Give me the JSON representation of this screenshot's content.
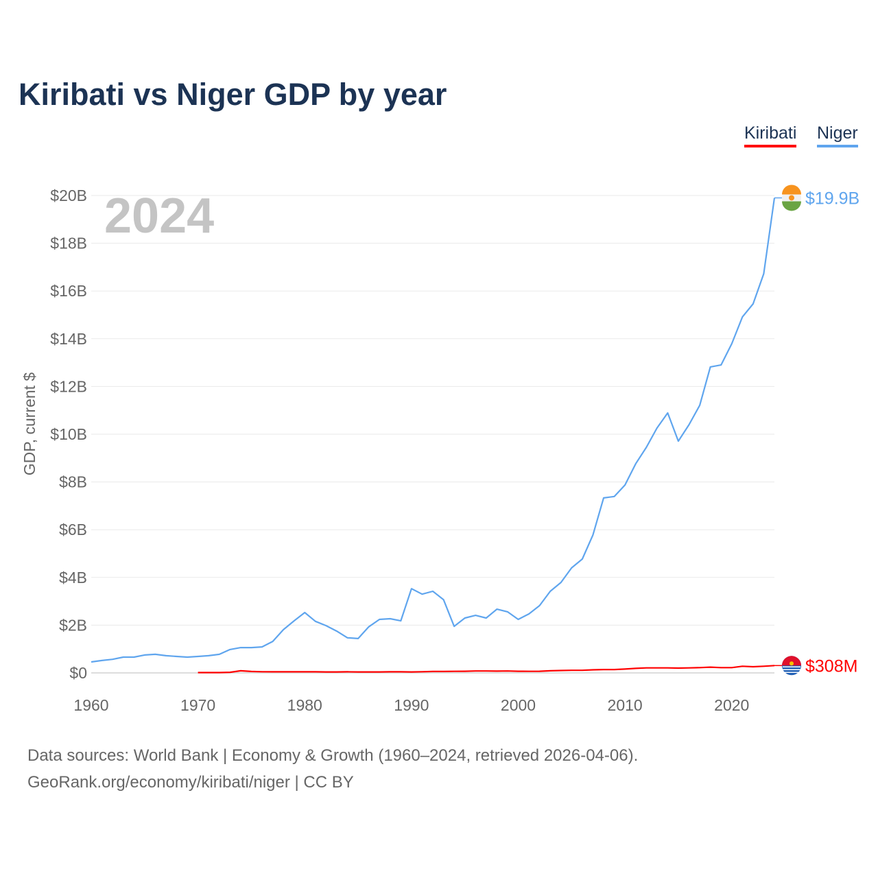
{
  "title": "Kiribati vs Niger GDP by year",
  "legend": [
    {
      "name": "Kiribati",
      "color": "#ff0000"
    },
    {
      "name": "Niger",
      "color": "#5fa5ee"
    }
  ],
  "footer": {
    "line1": "Data sources: World Bank | Economy & Growth (1960–2024, retrieved 2026-04-06).",
    "line2": "GeoRank.org/economy/kiribati/niger | CC BY"
  },
  "chart_data": {
    "type": "line",
    "title": "Kiribati vs Niger GDP by year",
    "ylabel": "GDP, current $",
    "xlabel": "",
    "year_watermark": "2024",
    "xlim": [
      1960,
      2024
    ],
    "ylim": [
      0,
      20
    ],
    "x_ticks": [
      "1960",
      "1970",
      "1980",
      "1990",
      "2000",
      "2010",
      "2020"
    ],
    "y_ticks": [
      "$0",
      "$2B",
      "$4B",
      "$6B",
      "$8B",
      "$10B",
      "$12B",
      "$14B",
      "$16B",
      "$18B",
      "$20B"
    ],
    "grid": true,
    "legend_position": "top-right",
    "series": [
      {
        "name": "Niger",
        "color": "#5fa5ee",
        "start_year": 1960,
        "end_label": "$19.9B",
        "flag": "niger-flag",
        "values": [
          0.46,
          0.52,
          0.57,
          0.66,
          0.66,
          0.75,
          0.78,
          0.72,
          0.69,
          0.66,
          0.69,
          0.72,
          0.78,
          0.98,
          1.06,
          1.06,
          1.09,
          1.32,
          1.81,
          2.18,
          2.53,
          2.16,
          1.98,
          1.75,
          1.47,
          1.44,
          1.93,
          2.24,
          2.27,
          2.18,
          3.53,
          3.3,
          3.42,
          3.07,
          1.95,
          2.3,
          2.41,
          2.3,
          2.67,
          2.56,
          2.24,
          2.47,
          2.82,
          3.42,
          3.79,
          4.4,
          4.77,
          5.78,
          7.33,
          7.39,
          7.87,
          8.76,
          9.45,
          10.26,
          10.89,
          9.71,
          10.4,
          11.21,
          12.82,
          12.9,
          13.79,
          14.91,
          15.46,
          16.72,
          19.9
        ]
      },
      {
        "name": "Kiribati",
        "color": "#ff0000",
        "start_year": 1970,
        "end_label": "$308M",
        "flag": "kiribati-flag",
        "values": [
          0.014,
          0.014,
          0.015,
          0.025,
          0.09,
          0.06,
          0.05,
          0.045,
          0.045,
          0.045,
          0.045,
          0.045,
          0.04,
          0.04,
          0.045,
          0.04,
          0.04,
          0.04,
          0.045,
          0.045,
          0.04,
          0.05,
          0.06,
          0.06,
          0.065,
          0.07,
          0.08,
          0.08,
          0.075,
          0.08,
          0.07,
          0.065,
          0.07,
          0.09,
          0.1,
          0.11,
          0.11,
          0.13,
          0.14,
          0.14,
          0.16,
          0.19,
          0.21,
          0.21,
          0.21,
          0.2,
          0.21,
          0.22,
          0.24,
          0.22,
          0.22,
          0.28,
          0.26,
          0.28,
          0.308
        ]
      }
    ]
  }
}
